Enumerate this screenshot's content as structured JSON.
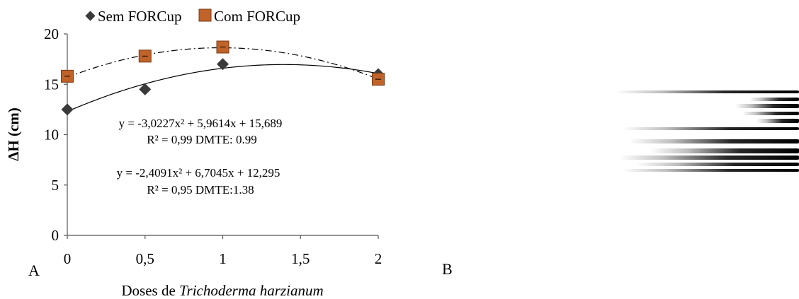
{
  "chart_data": {
    "type": "scatter",
    "xlabel_prefix": "Doses de ",
    "xlabel_italic": "Trichoderma harzianum",
    "ylabel": "ΔH (cm)",
    "x_ticks": [
      "0",
      "0,5",
      "1",
      "1,5",
      "2"
    ],
    "y_ticks": [
      "0",
      "5",
      "10",
      "15",
      "20"
    ],
    "xlim": [
      0,
      2
    ],
    "ylim": [
      0,
      20
    ],
    "grid": false,
    "legend_position": "top",
    "series": [
      {
        "name": "Sem FORCup",
        "marker": "diamond",
        "color": "#3a3a3a",
        "line": "solid",
        "x": [
          0,
          0.5,
          1,
          2
        ],
        "y": [
          12.5,
          14.5,
          17.0,
          16.0
        ],
        "fit": {
          "a": -2.4091,
          "b": 6.7045,
          "c": 12.295
        },
        "equation": "y = -2,4091x² + 6,7045x + 12,295",
        "r2": "R² = 0,95 DMTE:1.38"
      },
      {
        "name": "Com FORCup",
        "marker": "square",
        "color": "#c0632a",
        "line": "dash-dot",
        "x": [
          0,
          0.5,
          1,
          2
        ],
        "y": [
          15.8,
          17.8,
          18.7,
          15.5
        ],
        "fit": {
          "a": -3.0227,
          "b": 5.9614,
          "c": 15.689
        },
        "equation": "y = -3,0227x² + 5,9614x + 15,689",
        "r2": "R² = 0,99 DMTE: 0.99"
      }
    ]
  },
  "panels": {
    "a_label": "A",
    "b_label": "B"
  }
}
